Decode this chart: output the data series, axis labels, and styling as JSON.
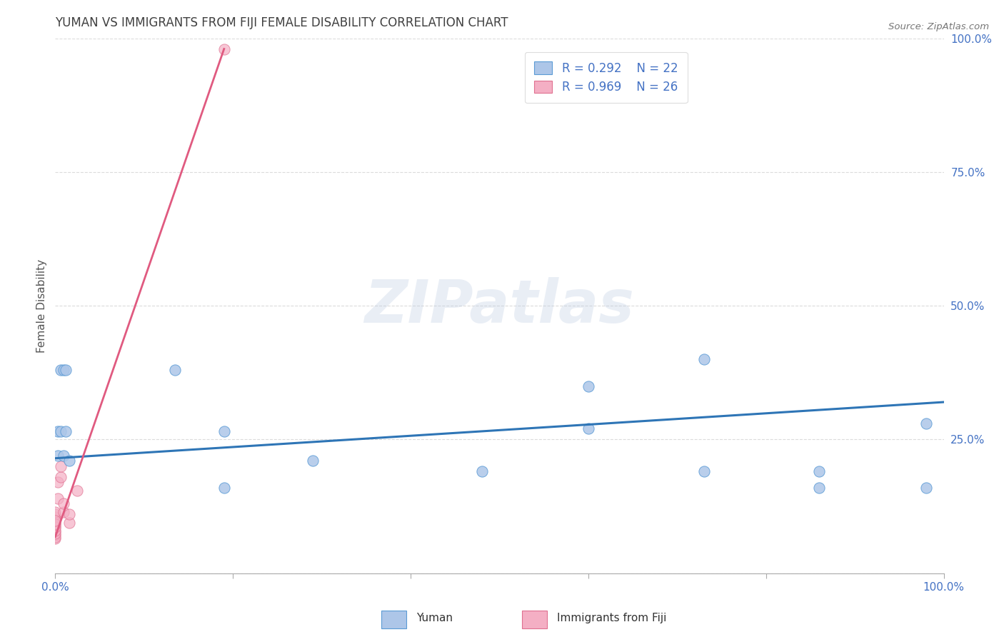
{
  "title": "YUMAN VS IMMIGRANTS FROM FIJI FEMALE DISABILITY CORRELATION CHART",
  "source": "Source: ZipAtlas.com",
  "ylabel": "Female Disability",
  "xlim": [
    0.0,
    1.0
  ],
  "ylim": [
    0.0,
    1.0
  ],
  "yticks": [
    0.0,
    0.25,
    0.5,
    0.75,
    1.0
  ],
  "ytick_labels": [
    "",
    "25.0%",
    "50.0%",
    "75.0%",
    "100.0%"
  ],
  "xticks": [
    0.0,
    0.2,
    0.4,
    0.6,
    0.8,
    1.0
  ],
  "xtick_labels": [
    "0.0%",
    "",
    "",
    "",
    "",
    "100.0%"
  ],
  "blue_points_x": [
    0.003,
    0.003,
    0.006,
    0.006,
    0.009,
    0.009,
    0.012,
    0.012,
    0.016,
    0.135,
    0.19,
    0.19,
    0.29,
    0.48,
    0.6,
    0.6,
    0.73,
    0.73,
    0.86,
    0.86,
    0.98,
    0.98
  ],
  "blue_points_y": [
    0.265,
    0.22,
    0.38,
    0.265,
    0.38,
    0.22,
    0.38,
    0.265,
    0.21,
    0.38,
    0.265,
    0.16,
    0.21,
    0.19,
    0.35,
    0.27,
    0.4,
    0.19,
    0.16,
    0.19,
    0.28,
    0.16
  ],
  "pink_points_x": [
    0.0,
    0.0,
    0.0,
    0.0,
    0.0,
    0.0,
    0.0,
    0.0,
    0.0,
    0.0,
    0.0,
    0.0,
    0.0,
    0.0,
    0.0,
    0.0,
    0.003,
    0.003,
    0.006,
    0.006,
    0.009,
    0.009,
    0.016,
    0.016,
    0.025,
    0.19
  ],
  "pink_points_y": [
    0.065,
    0.072,
    0.078,
    0.085,
    0.09,
    0.095,
    0.1,
    0.105,
    0.11,
    0.115,
    0.068,
    0.074,
    0.08,
    0.087,
    0.092,
    0.098,
    0.14,
    0.17,
    0.18,
    0.2,
    0.115,
    0.13,
    0.095,
    0.11,
    0.155,
    0.98
  ],
  "blue_line_x": [
    0.0,
    1.0
  ],
  "blue_line_y": [
    0.215,
    0.32
  ],
  "pink_line_x": [
    0.0,
    0.19
  ],
  "pink_line_y": [
    0.068,
    0.98
  ],
  "legend_R_blue": "R = 0.292",
  "legend_N_blue": "N = 22",
  "legend_R_pink": "R = 0.969",
  "legend_N_pink": "N = 26",
  "blue_scatter_color": "#adc6e8",
  "blue_scatter_edge": "#5b9bd5",
  "blue_line_color": "#2e75b6",
  "pink_scatter_color": "#f4afc4",
  "pink_scatter_edge": "#e07090",
  "pink_line_color": "#e05a80",
  "background_color": "#ffffff",
  "grid_color": "#cccccc",
  "title_color": "#404040",
  "axis_label_color": "#4472c4",
  "watermark_text": "ZIPatlas",
  "watermark_color": "#b8c8e0",
  "legend_label_color": "#4472c4"
}
